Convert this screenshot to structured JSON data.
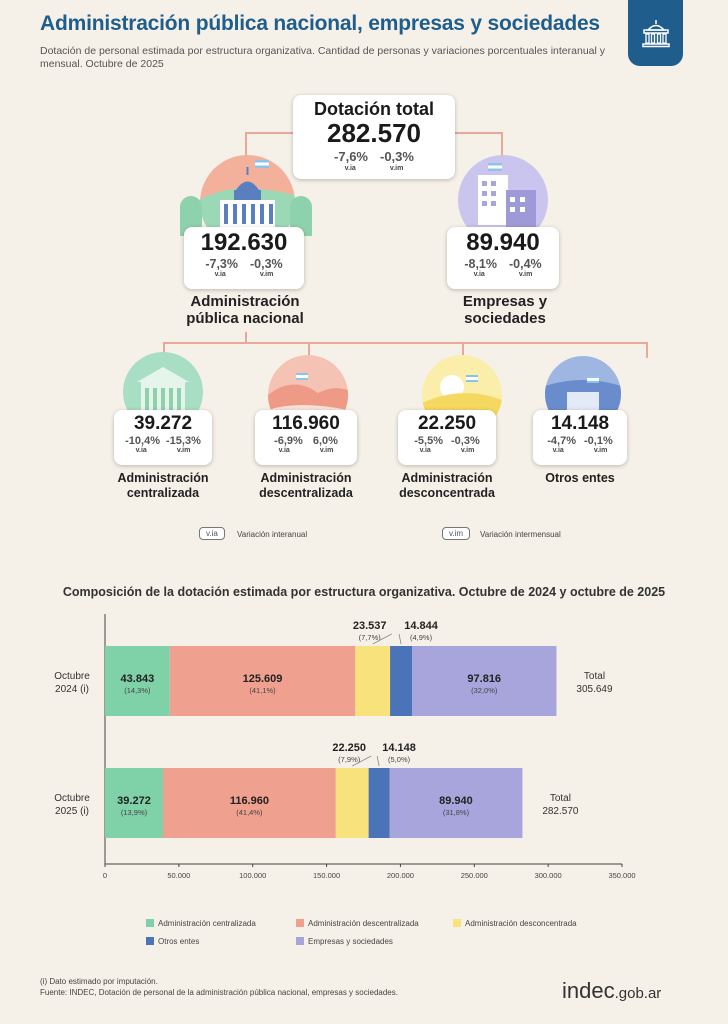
{
  "header": {
    "title": "Administración pública nacional, empresas y sociedades",
    "subtitle": "Dotación de personal estimada por estructura organizativa. Cantidad de personas y variaciones porcentuales interanual y mensual. Octubre de 2025",
    "badge_icon": "government-building-icon"
  },
  "tree": {
    "total": {
      "title": "Dotación total",
      "value": "282.570",
      "via": "-7,6%",
      "vim": "-0,3%",
      "via_label": "v.ia",
      "vim_label": "v.im"
    },
    "apn": {
      "value": "192.630",
      "via": "-7,3%",
      "vim": "-0,3%",
      "via_label": "v.ia",
      "vim_label": "v.im",
      "name_line1": "Administración",
      "name_line2": "pública nacional",
      "illustration": "congress-building-icon"
    },
    "emp": {
      "value": "89.940",
      "via": "-8,1%",
      "vim": "-0,4%",
      "via_label": "v.ia",
      "vim_label": "v.im",
      "name_line1": "Empresas y",
      "name_line2": "sociedades",
      "illustration": "office-buildings-icon"
    },
    "cen": {
      "value": "39.272",
      "via": "-10,4%",
      "vim": "-15,3%",
      "via_label": "v.ia",
      "vim_label": "v.im",
      "name_line1": "Administración",
      "name_line2": "centralizada",
      "illustration": "government-house-icon"
    },
    "des": {
      "value": "116.960",
      "via": "-6,9%",
      "vim": "6,0%",
      "via_label": "v.ia",
      "vim_label": "v.im",
      "name_line1": "Administración",
      "name_line2": "descentralizada",
      "illustration": "hills-flag-icon"
    },
    "dcc": {
      "value": "22.250",
      "via": "-5,5%",
      "vim": "-0,3%",
      "via_label": "v.ia",
      "vim_label": "v.im",
      "name_line1": "Administración",
      "name_line2": "desconcentrada",
      "illustration": "sun-hills-icon"
    },
    "otr": {
      "value": "14.148",
      "via": "-4,7%",
      "vim": "-0,1%",
      "via_label": "v.ia",
      "vim_label": "v.im",
      "name_line1": "Otros entes",
      "name_line2": "",
      "illustration": "building-flag-icon"
    }
  },
  "key": {
    "via_box": "v.ia",
    "via_text": "Variación interanual",
    "vim_box": "v.im",
    "vim_text": "Variación intermensual"
  },
  "colors": {
    "centralizada": "#7fd1a8",
    "descentralizada": "#f0a08e",
    "desconcentrada": "#f7e27c",
    "otros": "#4a73b8",
    "empresas": "#a8a4dc",
    "title_blue": "#1f5e8c"
  },
  "chart_data": {
    "type": "bar",
    "orientation": "horizontal",
    "stacked": true,
    "title": "Composición de la dotación estimada por estructura organizativa. Octubre de 2024 y octubre de 2025",
    "categories": [
      {
        "line1": "Octubre",
        "line2": "2024 (i)",
        "total_label": "Total",
        "total_value": "305.649"
      },
      {
        "line1": "Octubre",
        "line2": "2025 (i)",
        "total_label": "Total",
        "total_value": "282.570"
      }
    ],
    "series": [
      {
        "name": "Administración centralizada",
        "values": [
          43843,
          39272
        ],
        "labels": [
          "43.843",
          "39.272"
        ],
        "pcts": [
          "(14,3%)",
          "(13,9%)"
        ]
      },
      {
        "name": "Administración descentralizada",
        "values": [
          125609,
          116960
        ],
        "labels": [
          "125.609",
          "116.960"
        ],
        "pcts": [
          "(41,1%)",
          "(41,4%)"
        ]
      },
      {
        "name": "Administración desconcentrada",
        "values": [
          23537,
          22250
        ],
        "labels": [
          "23.537",
          "22.250"
        ],
        "pcts": [
          "(7,7%)",
          "(7,9%)"
        ]
      },
      {
        "name": "Otros entes",
        "values": [
          14844,
          14148
        ],
        "labels": [
          "14.844",
          "14.148"
        ],
        "pcts": [
          "(4,9%)",
          "(5,0%)"
        ]
      },
      {
        "name": "Empresas y sociedades",
        "values": [
          97816,
          89940
        ],
        "labels": [
          "97.816",
          "89.940"
        ],
        "pcts": [
          "(32,0%)",
          "(31,8%)"
        ]
      }
    ],
    "xlim": [
      0,
      350000
    ],
    "xticks": [
      0,
      50000,
      100000,
      150000,
      200000,
      250000,
      300000,
      350000
    ],
    "xtick_labels": [
      "0",
      "50.000",
      "100.000",
      "150.000",
      "200.000",
      "250.000",
      "300.000",
      "350.000"
    ],
    "grid": false,
    "legend_position": "bottom"
  },
  "footer": {
    "note": "(i) Dato estimado por imputación.",
    "source": "Fuente: INDEC, Dotación de personal de la administración pública nacional, empresas y sociedades.",
    "logo_main": "indec",
    "logo_suffix": ".gob.ar"
  }
}
